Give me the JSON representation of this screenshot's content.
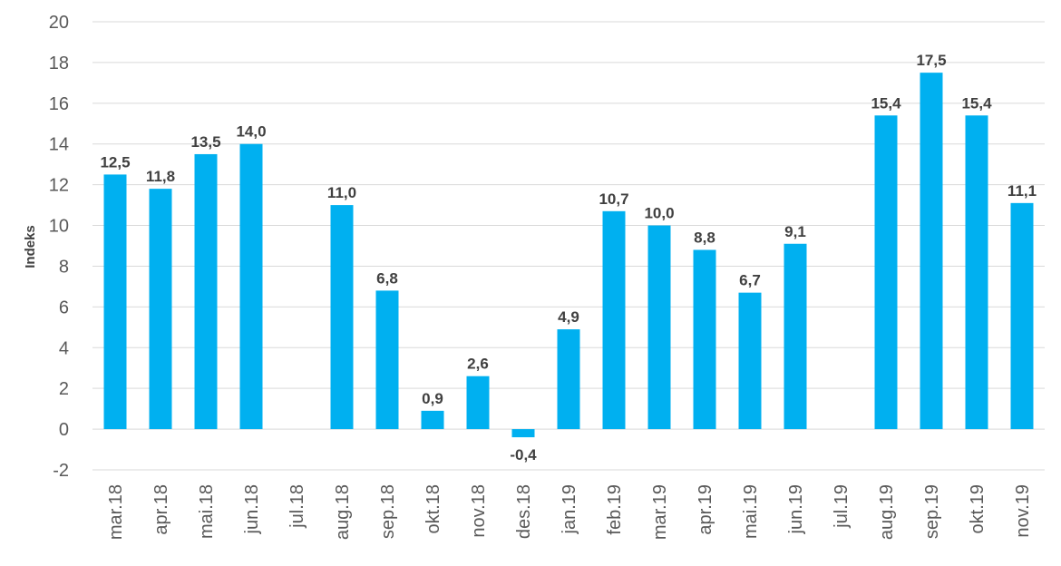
{
  "chart_data": {
    "type": "bar",
    "title": "",
    "xlabel": "",
    "ylabel": "Indeks",
    "ylim": [
      -2,
      20
    ],
    "yticks": [
      "-2",
      "0",
      "2",
      "4",
      "6",
      "8",
      "10",
      "12",
      "14",
      "16",
      "18",
      "20"
    ],
    "grid": true,
    "legend": "none",
    "bar_color": "#00B0F0",
    "categories": [
      "mar.18",
      "apr.18",
      "mai.18",
      "jun.18",
      "jul.18",
      "aug.18",
      "sep.18",
      "okt.18",
      "nov.18",
      "des.18",
      "jan.19",
      "feb.19",
      "mar.19",
      "apr.19",
      "mai.19",
      "jun.19",
      "jul.19",
      "aug.19",
      "sep.19",
      "okt.19",
      "nov.19"
    ],
    "values": [
      12.5,
      11.8,
      13.5,
      14.0,
      null,
      11.0,
      6.8,
      0.9,
      2.6,
      -0.4,
      4.9,
      10.7,
      10.0,
      8.8,
      6.7,
      9.1,
      null,
      15.4,
      17.5,
      15.4,
      11.1
    ],
    "value_labels": [
      "12,5",
      "11,8",
      "13,5",
      "14,0",
      "",
      "11,0",
      "6,8",
      "0,9",
      "2,6",
      "-0,4",
      "4,9",
      "10,7",
      "10,0",
      "8,8",
      "6,7",
      "9,1",
      "",
      "15,4",
      "17,5",
      "15,4",
      "11,1"
    ]
  }
}
